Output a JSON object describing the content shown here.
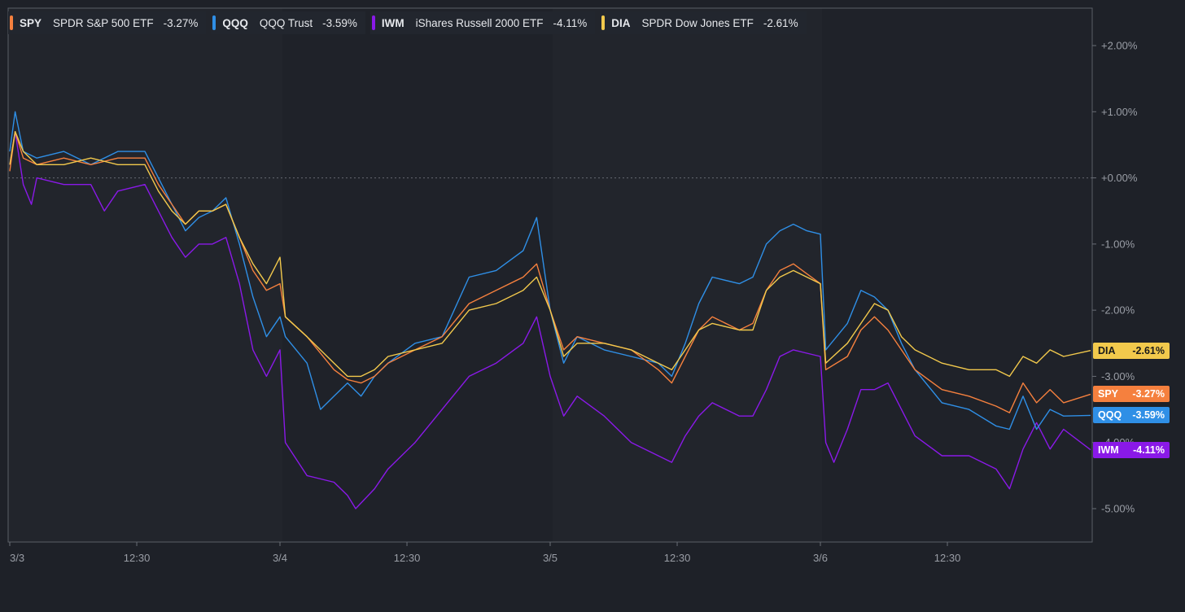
{
  "chart_data": {
    "type": "line",
    "title": "",
    "xlabel": "",
    "ylabel": "",
    "ylim": [
      -5.5,
      2.5
    ],
    "y_ticks": [
      {
        "value": 2,
        "label": "+2.00%"
      },
      {
        "value": 1,
        "label": "+1.00%"
      },
      {
        "value": 0,
        "label": "+0.00%"
      },
      {
        "value": -1,
        "label": "-1.00%"
      },
      {
        "value": -2,
        "label": "-2.00%"
      },
      {
        "value": -3,
        "label": "-3.00%"
      },
      {
        "value": -4,
        "label": "-4.00%"
      },
      {
        "value": -5,
        "label": "-5.00%"
      }
    ],
    "x_range": [
      0,
      4
    ],
    "x_ticks": [
      {
        "value": 0,
        "label": "3/3"
      },
      {
        "value": 0.47,
        "label": "12:30"
      },
      {
        "value": 1,
        "label": "3/4"
      },
      {
        "value": 1.47,
        "label": "12:30"
      },
      {
        "value": 2,
        "label": "3/5"
      },
      {
        "value": 2.47,
        "label": "12:30"
      },
      {
        "value": 3,
        "label": "3/6"
      },
      {
        "value": 3.47,
        "label": "12:30"
      }
    ],
    "series": [
      {
        "symbol": "SPY",
        "name": "SPDR S&P 500 ETF",
        "change": "-3.27%",
        "color": "#f5803e",
        "points": [
          [
            0,
            0.1
          ],
          [
            0.02,
            0.7
          ],
          [
            0.05,
            0.3
          ],
          [
            0.1,
            0.2
          ],
          [
            0.2,
            0.3
          ],
          [
            0.3,
            0.2
          ],
          [
            0.4,
            0.3
          ],
          [
            0.5,
            0.3
          ],
          [
            0.55,
            -0.1
          ],
          [
            0.6,
            -0.4
          ],
          [
            0.65,
            -0.7
          ],
          [
            0.7,
            -0.5
          ],
          [
            0.75,
            -0.5
          ],
          [
            0.8,
            -0.4
          ],
          [
            0.85,
            -0.9
          ],
          [
            0.9,
            -1.4
          ],
          [
            0.95,
            -1.7
          ],
          [
            1,
            -1.6
          ],
          [
            1.02,
            -2.1
          ],
          [
            1.1,
            -2.4
          ],
          [
            1.2,
            -2.9
          ],
          [
            1.25,
            -3.05
          ],
          [
            1.3,
            -3.1
          ],
          [
            1.35,
            -3.0
          ],
          [
            1.4,
            -2.8
          ],
          [
            1.5,
            -2.6
          ],
          [
            1.6,
            -2.4
          ],
          [
            1.7,
            -1.9
          ],
          [
            1.8,
            -1.7
          ],
          [
            1.9,
            -1.5
          ],
          [
            1.95,
            -1.3
          ],
          [
            2,
            -2.0
          ],
          [
            2.05,
            -2.6
          ],
          [
            2.1,
            -2.4
          ],
          [
            2.2,
            -2.5
          ],
          [
            2.3,
            -2.6
          ],
          [
            2.4,
            -2.9
          ],
          [
            2.45,
            -3.1
          ],
          [
            2.5,
            -2.7
          ],
          [
            2.55,
            -2.3
          ],
          [
            2.6,
            -2.1
          ],
          [
            2.7,
            -2.3
          ],
          [
            2.75,
            -2.2
          ],
          [
            2.8,
            -1.7
          ],
          [
            2.85,
            -1.4
          ],
          [
            2.9,
            -1.3
          ],
          [
            2.95,
            -1.45
          ],
          [
            3,
            -1.6
          ],
          [
            3.02,
            -2.9
          ],
          [
            3.1,
            -2.7
          ],
          [
            3.15,
            -2.3
          ],
          [
            3.2,
            -2.1
          ],
          [
            3.25,
            -2.3
          ],
          [
            3.3,
            -2.6
          ],
          [
            3.35,
            -2.9
          ],
          [
            3.45,
            -3.2
          ],
          [
            3.55,
            -3.3
          ],
          [
            3.65,
            -3.45
          ],
          [
            3.7,
            -3.55
          ],
          [
            3.75,
            -3.1
          ],
          [
            3.8,
            -3.4
          ],
          [
            3.85,
            -3.2
          ],
          [
            3.9,
            -3.4
          ],
          [
            4,
            -3.27
          ]
        ]
      },
      {
        "symbol": "QQQ",
        "name": "QQQ Trust",
        "change": "-3.59%",
        "color": "#2f8fe6",
        "points": [
          [
            0,
            0.4
          ],
          [
            0.02,
            1.0
          ],
          [
            0.05,
            0.4
          ],
          [
            0.1,
            0.3
          ],
          [
            0.2,
            0.4
          ],
          [
            0.3,
            0.2
          ],
          [
            0.4,
            0.4
          ],
          [
            0.5,
            0.4
          ],
          [
            0.55,
            0.0
          ],
          [
            0.6,
            -0.4
          ],
          [
            0.65,
            -0.8
          ],
          [
            0.7,
            -0.6
          ],
          [
            0.75,
            -0.5
          ],
          [
            0.8,
            -0.3
          ],
          [
            0.85,
            -1.0
          ],
          [
            0.9,
            -1.8
          ],
          [
            0.95,
            -2.4
          ],
          [
            1,
            -2.1
          ],
          [
            1.02,
            -2.4
          ],
          [
            1.1,
            -2.8
          ],
          [
            1.15,
            -3.5
          ],
          [
            1.2,
            -3.3
          ],
          [
            1.25,
            -3.1
          ],
          [
            1.3,
            -3.3
          ],
          [
            1.35,
            -3.0
          ],
          [
            1.4,
            -2.8
          ],
          [
            1.5,
            -2.5
          ],
          [
            1.6,
            -2.4
          ],
          [
            1.7,
            -1.5
          ],
          [
            1.8,
            -1.4
          ],
          [
            1.9,
            -1.1
          ],
          [
            1.95,
            -0.6
          ],
          [
            2,
            -2.0
          ],
          [
            2.05,
            -2.8
          ],
          [
            2.1,
            -2.4
          ],
          [
            2.2,
            -2.6
          ],
          [
            2.3,
            -2.7
          ],
          [
            2.4,
            -2.8
          ],
          [
            2.45,
            -3.0
          ],
          [
            2.5,
            -2.5
          ],
          [
            2.55,
            -1.9
          ],
          [
            2.6,
            -1.5
          ],
          [
            2.7,
            -1.6
          ],
          [
            2.75,
            -1.5
          ],
          [
            2.8,
            -1.0
          ],
          [
            2.85,
            -0.8
          ],
          [
            2.9,
            -0.7
          ],
          [
            2.95,
            -0.8
          ],
          [
            3,
            -0.85
          ],
          [
            3.02,
            -2.6
          ],
          [
            3.1,
            -2.2
          ],
          [
            3.15,
            -1.7
          ],
          [
            3.2,
            -1.8
          ],
          [
            3.25,
            -2.0
          ],
          [
            3.3,
            -2.5
          ],
          [
            3.35,
            -2.9
          ],
          [
            3.45,
            -3.4
          ],
          [
            3.55,
            -3.5
          ],
          [
            3.65,
            -3.75
          ],
          [
            3.7,
            -3.8
          ],
          [
            3.75,
            -3.3
          ],
          [
            3.8,
            -3.8
          ],
          [
            3.85,
            -3.5
          ],
          [
            3.9,
            -3.6
          ],
          [
            4,
            -3.59
          ]
        ]
      },
      {
        "symbol": "IWM",
        "name": "iShares Russell 2000 ETF",
        "change": "-4.11%",
        "color": "#8a19e8",
        "points": [
          [
            0,
            0.2
          ],
          [
            0.02,
            0.7
          ],
          [
            0.05,
            -0.1
          ],
          [
            0.08,
            -0.4
          ],
          [
            0.1,
            0.0
          ],
          [
            0.2,
            -0.1
          ],
          [
            0.3,
            -0.1
          ],
          [
            0.35,
            -0.5
          ],
          [
            0.4,
            -0.2
          ],
          [
            0.5,
            -0.1
          ],
          [
            0.55,
            -0.5
          ],
          [
            0.6,
            -0.9
          ],
          [
            0.65,
            -1.2
          ],
          [
            0.7,
            -1.0
          ],
          [
            0.75,
            -1.0
          ],
          [
            0.8,
            -0.9
          ],
          [
            0.85,
            -1.6
          ],
          [
            0.9,
            -2.6
          ],
          [
            0.95,
            -3.0
          ],
          [
            1,
            -2.6
          ],
          [
            1.02,
            -4.0
          ],
          [
            1.1,
            -4.5
          ],
          [
            1.2,
            -4.6
          ],
          [
            1.25,
            -4.8
          ],
          [
            1.28,
            -5.0
          ],
          [
            1.35,
            -4.7
          ],
          [
            1.4,
            -4.4
          ],
          [
            1.5,
            -4.0
          ],
          [
            1.6,
            -3.5
          ],
          [
            1.7,
            -3.0
          ],
          [
            1.8,
            -2.8
          ],
          [
            1.9,
            -2.5
          ],
          [
            1.95,
            -2.1
          ],
          [
            2,
            -3.0
          ],
          [
            2.05,
            -3.6
          ],
          [
            2.1,
            -3.3
          ],
          [
            2.2,
            -3.6
          ],
          [
            2.3,
            -4.0
          ],
          [
            2.4,
            -4.2
          ],
          [
            2.45,
            -4.3
          ],
          [
            2.5,
            -3.9
          ],
          [
            2.55,
            -3.6
          ],
          [
            2.6,
            -3.4
          ],
          [
            2.7,
            -3.6
          ],
          [
            2.75,
            -3.6
          ],
          [
            2.8,
            -3.2
          ],
          [
            2.85,
            -2.7
          ],
          [
            2.9,
            -2.6
          ],
          [
            2.95,
            -2.65
          ],
          [
            3,
            -2.7
          ],
          [
            3.02,
            -4.0
          ],
          [
            3.05,
            -4.3
          ],
          [
            3.1,
            -3.8
          ],
          [
            3.15,
            -3.2
          ],
          [
            3.2,
            -3.2
          ],
          [
            3.25,
            -3.1
          ],
          [
            3.3,
            -3.5
          ],
          [
            3.35,
            -3.9
          ],
          [
            3.45,
            -4.2
          ],
          [
            3.55,
            -4.2
          ],
          [
            3.65,
            -4.4
          ],
          [
            3.7,
            -4.7
          ],
          [
            3.75,
            -4.1
          ],
          [
            3.8,
            -3.7
          ],
          [
            3.85,
            -4.1
          ],
          [
            3.9,
            -3.8
          ],
          [
            4,
            -4.11
          ]
        ]
      },
      {
        "symbol": "DIA",
        "name": "SPDR Dow Jones ETF",
        "change": "-2.61%",
        "color": "#f2c94c",
        "points": [
          [
            0,
            0.2
          ],
          [
            0.02,
            0.7
          ],
          [
            0.05,
            0.4
          ],
          [
            0.1,
            0.2
          ],
          [
            0.2,
            0.2
          ],
          [
            0.3,
            0.3
          ],
          [
            0.4,
            0.2
          ],
          [
            0.5,
            0.2
          ],
          [
            0.55,
            -0.2
          ],
          [
            0.6,
            -0.5
          ],
          [
            0.65,
            -0.7
          ],
          [
            0.7,
            -0.5
          ],
          [
            0.75,
            -0.5
          ],
          [
            0.8,
            -0.4
          ],
          [
            0.85,
            -0.9
          ],
          [
            0.9,
            -1.3
          ],
          [
            0.95,
            -1.6
          ],
          [
            1,
            -1.2
          ],
          [
            1.02,
            -2.1
          ],
          [
            1.1,
            -2.4
          ],
          [
            1.2,
            -2.8
          ],
          [
            1.25,
            -3.0
          ],
          [
            1.3,
            -3.0
          ],
          [
            1.35,
            -2.9
          ],
          [
            1.4,
            -2.7
          ],
          [
            1.5,
            -2.6
          ],
          [
            1.6,
            -2.5
          ],
          [
            1.7,
            -2.0
          ],
          [
            1.8,
            -1.9
          ],
          [
            1.9,
            -1.7
          ],
          [
            1.95,
            -1.5
          ],
          [
            2,
            -2.0
          ],
          [
            2.05,
            -2.7
          ],
          [
            2.1,
            -2.5
          ],
          [
            2.2,
            -2.5
          ],
          [
            2.3,
            -2.6
          ],
          [
            2.4,
            -2.8
          ],
          [
            2.45,
            -2.9
          ],
          [
            2.5,
            -2.6
          ],
          [
            2.55,
            -2.3
          ],
          [
            2.6,
            -2.2
          ],
          [
            2.7,
            -2.3
          ],
          [
            2.75,
            -2.3
          ],
          [
            2.8,
            -1.7
          ],
          [
            2.85,
            -1.5
          ],
          [
            2.9,
            -1.4
          ],
          [
            2.95,
            -1.5
          ],
          [
            3,
            -1.6
          ],
          [
            3.02,
            -2.8
          ],
          [
            3.1,
            -2.5
          ],
          [
            3.15,
            -2.2
          ],
          [
            3.2,
            -1.9
          ],
          [
            3.25,
            -2.0
          ],
          [
            3.3,
            -2.4
          ],
          [
            3.35,
            -2.6
          ],
          [
            3.45,
            -2.8
          ],
          [
            3.55,
            -2.9
          ],
          [
            3.65,
            -2.9
          ],
          [
            3.7,
            -3.0
          ],
          [
            3.75,
            -2.7
          ],
          [
            3.8,
            -2.8
          ],
          [
            3.85,
            -2.6
          ],
          [
            3.9,
            -2.7
          ],
          [
            4,
            -2.61
          ]
        ]
      }
    ]
  }
}
